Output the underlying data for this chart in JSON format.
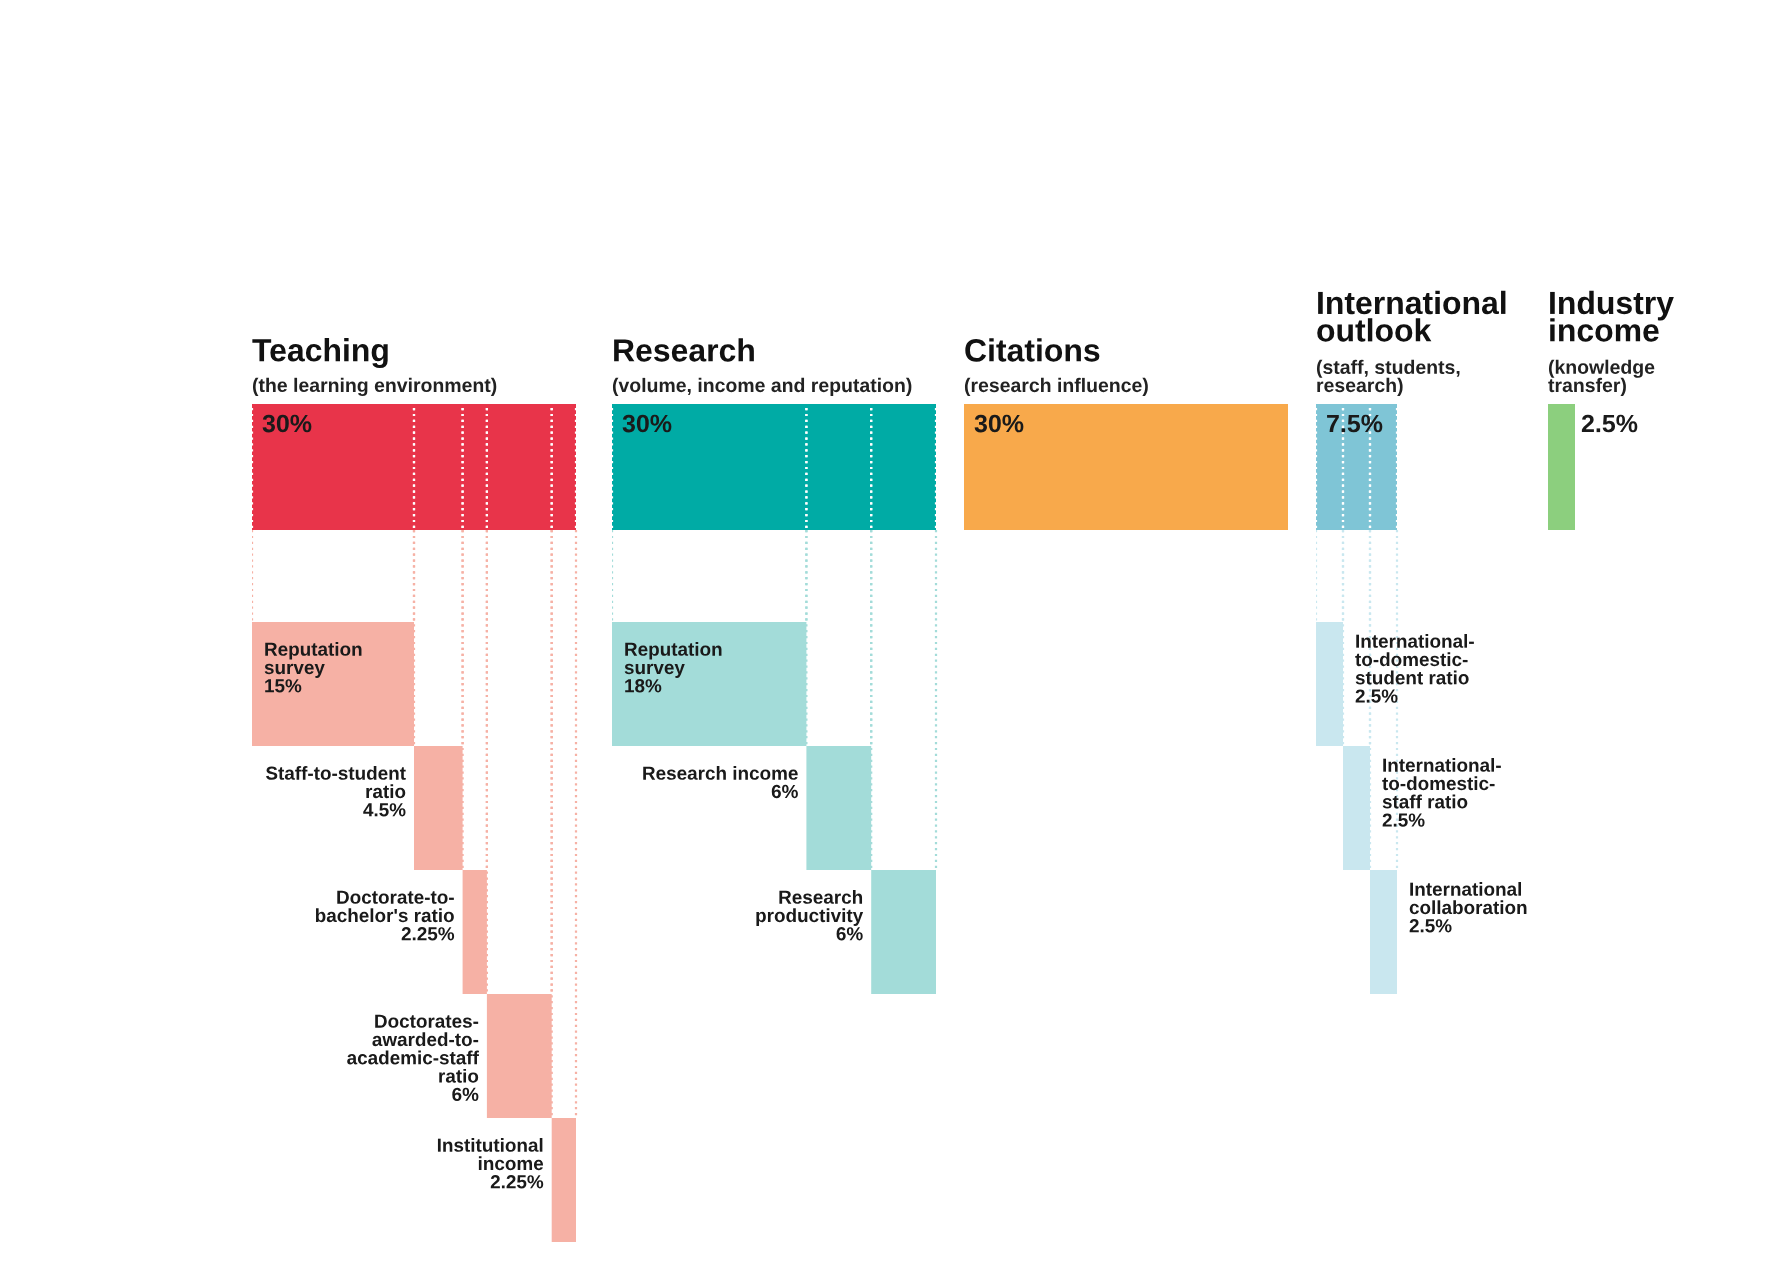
{
  "chart_data": [
    {
      "type": "other",
      "title": "Teaching",
      "subtitle": "(the learning environment)",
      "totals": [
        "30%"
      ],
      "color": "#e8344a",
      "categories": [
        "Reputation survey",
        "Staff-to-student ratio",
        "Doctorate-to-bachelor's ratio",
        "Doctorates-awarded-to-academic-staff ratio",
        "Institutional income"
      ],
      "values": [
        15,
        4.5,
        2.25,
        6,
        2.25
      ],
      "value_labels": [
        "15%",
        "4.5%",
        "2.25%",
        "6%",
        "2.25%"
      ],
      "colors": [
        "#f6b1a5",
        "#f6b1a5",
        "#f6b1a5",
        "#f6b1a5",
        "#f6b1a5"
      ]
    },
    {
      "type": "other",
      "title": "Research",
      "subtitle": "(volume, income and reputation)",
      "totals": [
        "30%"
      ],
      "color": "#00aba5",
      "categories": [
        "Reputation survey",
        "Research income",
        "Research productivity"
      ],
      "values": [
        18,
        6,
        6
      ],
      "value_labels": [
        "18%",
        "6%",
        "6%"
      ],
      "colors": [
        "#a3dcd9",
        "#a3dcd9",
        "#a3dcd9"
      ]
    },
    {
      "type": "other",
      "title": "Citations",
      "subtitle": "(research influence)",
      "color": "#f8a94b",
      "values": [
        30
      ],
      "value_labels": [
        "30%"
      ]
    },
    {
      "type": "other",
      "title": "International outlook",
      "subtitle": "(staff, students, research)",
      "totals": [
        "7.5%"
      ],
      "color": "#7fc5d6",
      "categories": [
        "International-to-domestic-student ratio",
        "International-to-domestic-staff ratio",
        "International collaboration"
      ],
      "values": [
        2.5,
        2.5,
        2.5
      ],
      "value_labels": [
        "2.5%",
        "2.5%",
        "2.5%"
      ],
      "colors": [
        "#c9e7ef",
        "#c9e7ef",
        "#c9e7ef"
      ]
    },
    {
      "type": "other",
      "title": "Industry income",
      "subtitle": "(knowledge transfer)",
      "color": "#8ccf7e",
      "values": [
        2.5
      ],
      "value_labels": [
        "2.5%"
      ]
    }
  ]
}
